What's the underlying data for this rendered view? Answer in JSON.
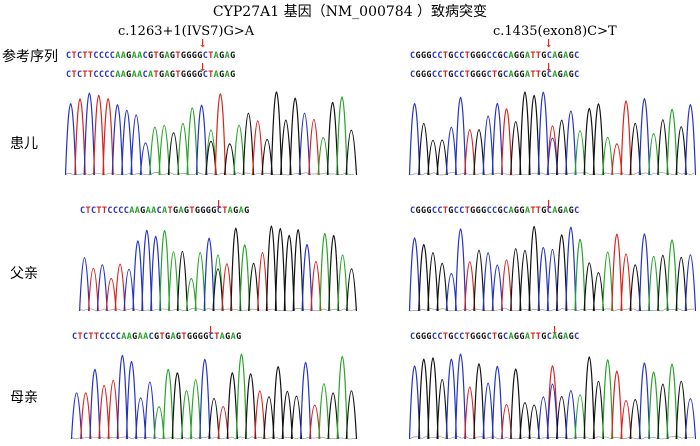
{
  "title": "CYP27A1 基因（NM_000784 ）致病突变",
  "mutations": {
    "left": "c.1263+1(IVS7)G>A",
    "right": "c.1435(exon8)C>T"
  },
  "labels": {
    "reference": "参考序列",
    "patient": "患儿",
    "father": "父亲",
    "mother": "母亲"
  },
  "arrow": "↓",
  "sequences": {
    "left_ref": "CTCTTCCCCAAGAACGTGAGTGGGGCTAGAG",
    "left_patient": "CTCTTCCCCAAGAACATGAGTGGGGCTAGAG",
    "left_father": "CTCTTCCCCAAGAACATGAGTGGGGCTAGAG",
    "left_mother": "CTCTTCCCCAAGAACGTGAGTGGGGCTAGAG",
    "right_ref": "CGGGCCTGCCTGGGCCGCAGGATTGCAGAGC",
    "right_patient": "CGGGCCTGCCTGGGCTGCAGGATTGCAGAGC",
    "right_father": "CGGGCCTGCCTGGGCCGCAGGATTGCAGAGC",
    "right_mother": "CGGGCCTGCCTGGGCTGCAGGATTGCAGAGC"
  },
  "base_colors": {
    "A": "#27a327",
    "C": "#2431c4",
    "G": "#111111",
    "T": "#d8231c"
  }
}
